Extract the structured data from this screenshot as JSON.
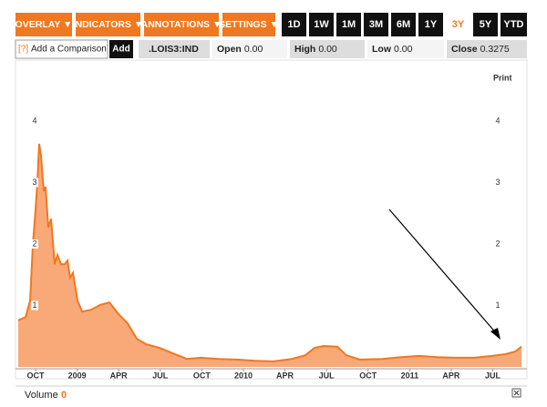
{
  "toolbar": {
    "menus": [
      "OVERLAY ▼",
      "INDICATORS ▼",
      "ANNOTATIONS ▼",
      "SETTINGS ▼"
    ],
    "ranges": [
      "1D",
      "1W",
      "1M",
      "3M",
      "6M",
      "1Y",
      "3Y",
      "5Y",
      "YTD"
    ]
  },
  "comparison": {
    "help": "[?]",
    "placeholder": "Add a Comparison",
    "button": "Add"
  },
  "quote": {
    "symbol": ".LOIS3:IND",
    "fields": [
      {
        "label": "Open",
        "value": "0.00"
      },
      {
        "label": "High",
        "value": "0.00"
      },
      {
        "label": "Low",
        "value": "0.00"
      },
      {
        "label": "Close",
        "value": "0.3275"
      }
    ]
  },
  "chart_data": {
    "type": "area",
    "print": "Print",
    "color": "#f07820",
    "fill": "#f9a878",
    "x": [
      -1.25,
      -0.72,
      -0.39,
      -0.2,
      0,
      0.13,
      0.26,
      0.39,
      0.59,
      0.72,
      0.92,
      1.12,
      1.38,
      1.58,
      1.84,
      2.11,
      2.3,
      2.5,
      2.7,
      3.03,
      3.36,
      4.01,
      4.67,
      5.33,
      5.99,
      6.64,
      7.3,
      7.96,
      8.95,
      9.93,
      10.92,
      11.91,
      13.22,
      14.54,
      15.86,
      17.17,
      18.49,
      19.47,
      20.13,
      20.79,
      21.78,
      22.43,
      23.42,
      25.07,
      26.38,
      27.7,
      29.01,
      30.33,
      31.64,
      32.96,
      33.95,
      34.61,
      35.07
    ],
    "values": [
      0.76,
      0.81,
      1.08,
      1.97,
      2.56,
      3.0,
      3.63,
      3.45,
      2.86,
      2.93,
      2.27,
      2.41,
      1.67,
      1.82,
      1.67,
      1.67,
      1.73,
      1.45,
      1.53,
      1.08,
      0.9,
      0.93,
      1.01,
      1.05,
      0.86,
      0.71,
      0.46,
      0.37,
      0.31,
      0.22,
      0.13,
      0.15,
      0.13,
      0.12,
      0.1,
      0.09,
      0.13,
      0.19,
      0.31,
      0.34,
      0.33,
      0.19,
      0.12,
      0.13,
      0.16,
      0.18,
      0.16,
      0.15,
      0.15,
      0.18,
      0.21,
      0.25,
      0.33
    ],
    "xlim": [
      -1.25,
      35.07
    ],
    "ylim": [
      0,
      4.71
    ],
    "yticks": [
      1,
      2,
      3,
      4
    ],
    "xticks": [
      {
        "value": 0,
        "label": "OCT"
      },
      {
        "value": 3,
        "label": "2009"
      },
      {
        "value": 6,
        "label": "APR"
      },
      {
        "value": 9,
        "label": "JUL"
      },
      {
        "value": 12,
        "label": "OCT"
      },
      {
        "value": 15,
        "label": "2010"
      },
      {
        "value": 18,
        "label": "APR"
      },
      {
        "value": 21,
        "label": "JUL"
      },
      {
        "value": 24,
        "label": "OCT"
      },
      {
        "value": 27,
        "label": "2011"
      },
      {
        "value": 30,
        "label": "APR"
      },
      {
        "value": 33,
        "label": "JUL"
      }
    ]
  },
  "footer": {
    "label": "Volume",
    "value": "0"
  }
}
